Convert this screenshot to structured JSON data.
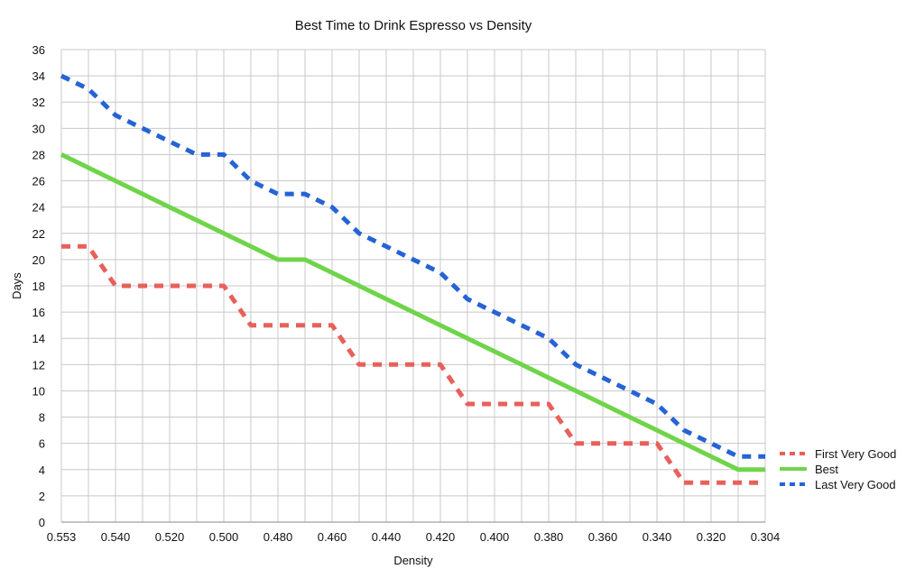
{
  "chart_data": {
    "type": "line",
    "title": "Best Time to Drink Espresso vs Density",
    "xlabel": "Density",
    "ylabel": "Days",
    "ylim": [
      0,
      36
    ],
    "y_ticks": [
      "0",
      "2",
      "4",
      "6",
      "8",
      "10",
      "12",
      "14",
      "16",
      "18",
      "20",
      "22",
      "24",
      "26",
      "28",
      "30",
      "32",
      "34",
      "36"
    ],
    "x_ticks": [
      "0.553",
      "0.540",
      "0.520",
      "0.500",
      "0.480",
      "0.460",
      "0.440",
      "0.420",
      "0.400",
      "0.380",
      "0.360",
      "0.340",
      "0.320",
      "0.304"
    ],
    "grid": true,
    "legend_position": "right",
    "categories": [
      "0.553",
      "0.55",
      "0.54",
      "0.53",
      "0.52",
      "0.51",
      "0.50",
      "0.49",
      "0.48",
      "0.47",
      "0.46",
      "0.45",
      "0.44",
      "0.43",
      "0.42",
      "0.41",
      "0.40",
      "0.39",
      "0.38",
      "0.37",
      "0.36",
      "0.35",
      "0.34",
      "0.33",
      "0.32",
      "0.31",
      "0.304"
    ],
    "series": [
      {
        "name": "First Very Good",
        "color": "#e8605a",
        "dash": "dashed",
        "values": [
          21,
          21,
          18,
          18,
          18,
          18,
          18,
          15,
          15,
          15,
          15,
          12,
          12,
          12,
          12,
          9,
          9,
          9,
          9,
          6,
          6,
          6,
          6,
          3,
          3,
          3,
          3
        ]
      },
      {
        "name": "Best",
        "color": "#6fd44a",
        "dash": "solid",
        "values": [
          28,
          27,
          26,
          25,
          24,
          23,
          22,
          21,
          20,
          20,
          19,
          18,
          17,
          16,
          15,
          14,
          13,
          12,
          11,
          10,
          9,
          8,
          7,
          6,
          5,
          4,
          4
        ]
      },
      {
        "name": "Last Very Good",
        "color": "#2563d6",
        "dash": "dashed",
        "values": [
          34,
          33,
          31,
          30,
          29,
          28,
          28,
          26,
          25,
          25,
          24,
          22,
          21,
          20,
          19,
          17,
          16,
          15,
          14,
          12,
          11,
          10,
          9,
          7,
          6,
          5,
          5
        ]
      }
    ]
  }
}
